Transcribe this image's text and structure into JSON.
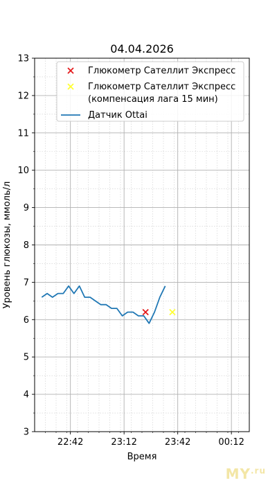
{
  "chart_data": {
    "type": "line",
    "title": "04.04.2026",
    "xlabel": "Время",
    "ylabel": "Уровень глюкозы, ммоль/л",
    "ylim": [
      3,
      13
    ],
    "xlim": [
      "22:22",
      "00:22"
    ],
    "x_ticks": [
      "22:42",
      "23:12",
      "23:42",
      "00:12"
    ],
    "y_ticks": [
      3,
      4,
      5,
      6,
      7,
      8,
      9,
      10,
      11,
      12,
      13
    ],
    "grid": true,
    "legend_position": "top-right",
    "series": [
      {
        "name": "Глюкометр Сателлит Экспресс",
        "kind": "scatter",
        "marker": "x",
        "color": "#e41a1c",
        "points": [
          {
            "x": "23:24",
            "y": 6.2
          }
        ]
      },
      {
        "name": "Глюкометр Сателлит Экспресс\n(компенсация лага 15 мин)",
        "kind": "scatter",
        "marker": "x",
        "color": "#ffff33",
        "points": [
          {
            "x": "23:39",
            "y": 6.2
          }
        ]
      },
      {
        "name": "Датчик Ottai",
        "kind": "line",
        "color": "#1f77b4",
        "points": [
          {
            "x": "22:26",
            "y": 6.6
          },
          {
            "x": "22:29",
            "y": 6.7
          },
          {
            "x": "22:32",
            "y": 6.6
          },
          {
            "x": "22:35",
            "y": 6.7
          },
          {
            "x": "22:38",
            "y": 6.7
          },
          {
            "x": "22:41",
            "y": 6.9
          },
          {
            "x": "22:44",
            "y": 6.7
          },
          {
            "x": "22:47",
            "y": 6.9
          },
          {
            "x": "22:50",
            "y": 6.6
          },
          {
            "x": "22:53",
            "y": 6.6
          },
          {
            "x": "22:56",
            "y": 6.5
          },
          {
            "x": "22:59",
            "y": 6.4
          },
          {
            "x": "23:02",
            "y": 6.4
          },
          {
            "x": "23:05",
            "y": 6.3
          },
          {
            "x": "23:08",
            "y": 6.3
          },
          {
            "x": "23:11",
            "y": 6.1
          },
          {
            "x": "23:14",
            "y": 6.2
          },
          {
            "x": "23:17",
            "y": 6.2
          },
          {
            "x": "23:20",
            "y": 6.1
          },
          {
            "x": "23:23",
            "y": 6.1
          },
          {
            "x": "23:26",
            "y": 5.9
          },
          {
            "x": "23:29",
            "y": 6.2
          },
          {
            "x": "23:32",
            "y": 6.6
          },
          {
            "x": "23:35",
            "y": 6.9
          }
        ]
      }
    ]
  },
  "watermark": {
    "main": "MY",
    "sub": ".ru"
  }
}
